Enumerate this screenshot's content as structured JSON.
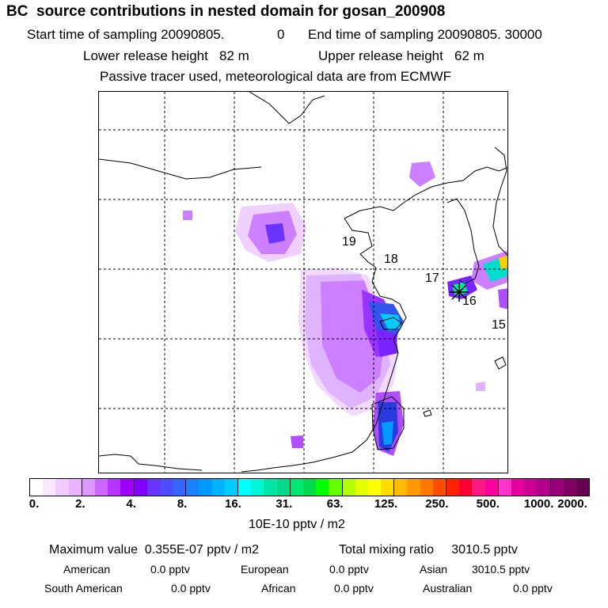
{
  "header": {
    "title": "BC  source contributions in nested domain for gosan_200908",
    "start_label": "Start time of sampling 20090805.",
    "start_hour": "0",
    "end_label": "End time of sampling 20090805. 30000",
    "lower_height": "Lower release height   82 m",
    "upper_height": "Upper release height   62 m",
    "tracer_note": "Passive tracer used, meteorological data are from ECMWF"
  },
  "map": {
    "trajectory_labels": [
      "19",
      "18",
      "17",
      "16",
      "15"
    ],
    "receptor_marker": "asterisk-icon"
  },
  "colorbar": {
    "colors": [
      "#ffffff",
      "#fbe6ff",
      "#f3ccff",
      "#eab3ff",
      "#dd99ff",
      "#cc66ff",
      "#b833ff",
      "#a000ff",
      "#8000ff",
      "#6633ff",
      "#4d4dff",
      "#3366ff",
      "#1a80ff",
      "#0099ff",
      "#00b3ff",
      "#00ccff",
      "#00ffff",
      "#00f5d9",
      "#00e6a6",
      "#00d98c",
      "#00e673",
      "#00d94d",
      "#00ff00",
      "#66ff00",
      "#b3ff00",
      "#e6ff00",
      "#ffff00",
      "#ffdd00",
      "#ffbb00",
      "#ff9900",
      "#ff7700",
      "#ff4d00",
      "#ff2200",
      "#ff0033",
      "#ff1a80",
      "#ff00a0",
      "#ff33cc",
      "#e6009e",
      "#cc0099",
      "#b3008f",
      "#99007a",
      "#800066",
      "#660052"
    ],
    "tick_labels": [
      "0.",
      "2.",
      "4.",
      "8.",
      "16.",
      "31.",
      "63.",
      "125.",
      "250.",
      "500.",
      "1000.",
      "2000."
    ],
    "unit": "10E-10 pptv / m2"
  },
  "stats": {
    "max_label": "Maximum value  0.355E-07 pptv / m2",
    "total_label": "Total mixing ratio     3010.5 pptv"
  },
  "sources": {
    "american": {
      "label": "American",
      "value": "0.0 pptv"
    },
    "european": {
      "label": "European",
      "value": "0.0 pptv"
    },
    "asian": {
      "label": "Asian",
      "value": "3010.5 pptv"
    },
    "south_american": {
      "label": "South American",
      "value": "0.0 pptv"
    },
    "african": {
      "label": "African",
      "value": "0.0 pptv"
    },
    "australian": {
      "label": "Australian",
      "value": "0.0 pptv"
    }
  }
}
